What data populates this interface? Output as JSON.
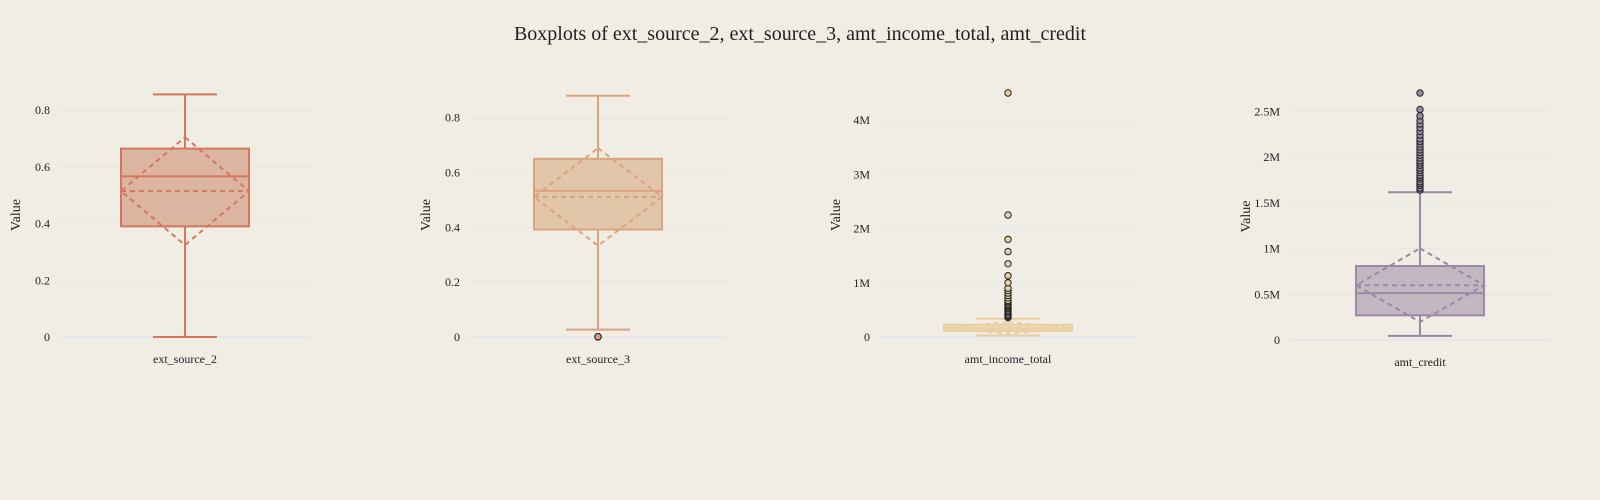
{
  "chart_data": {
    "title": "Boxplots of ext_source_2, ext_source_3, amt_income_total, amt_credit",
    "type": "box",
    "panels": [
      {
        "category": "ext_source_2",
        "ylabel": "Value",
        "ylim": [
          0,
          0.86
        ],
        "yticks": [
          0,
          0.2,
          0.4,
          0.6,
          0.8
        ],
        "ytick_labels": [
          "0",
          "0.2",
          "0.4",
          "0.6",
          "0.8"
        ],
        "color": "#d4775a",
        "fill": "#dcb5a1",
        "box": {
          "lowerfence": 0.0,
          "q1": 0.39,
          "median": 0.566,
          "q3": 0.664,
          "upperfence": 0.855,
          "mean": 0.514,
          "sd": 0.19
        },
        "outliers": []
      },
      {
        "category": "ext_source_3",
        "ylabel": "Value",
        "ylim": [
          0,
          0.89
        ],
        "yticks": [
          0,
          0.2,
          0.4,
          0.6,
          0.8
        ],
        "ytick_labels": [
          "0",
          "0.2",
          "0.4",
          "0.6",
          "0.8"
        ],
        "color": "#dda27e",
        "fill": "#e1c6a9",
        "box": {
          "lowerfence": 0.027,
          "q1": 0.392,
          "median": 0.533,
          "q3": 0.65,
          "upperfence": 0.88,
          "mean": 0.511,
          "sd": 0.178
        },
        "outliers": [
          0.0005,
          0.0008,
          0.001
        ]
      },
      {
        "category": "amt_income_total",
        "ylabel": "Value",
        "ylim": [
          0,
          4500000
        ],
        "yticks": [
          0,
          1000000,
          2000000,
          3000000,
          4000000
        ],
        "ytick_labels": [
          "0",
          "1M",
          "2M",
          "3M",
          "4M"
        ],
        "color": "#e8cfa4",
        "fill": "#eddcbd",
        "box": {
          "lowerfence": 27000,
          "q1": 112500,
          "median": 157500,
          "q3": 225000,
          "upperfence": 337500,
          "mean": 168000,
          "sd": 110000
        },
        "outliers": [
          360000,
          380000,
          400000,
          420000,
          450000,
          470000,
          495000,
          520000,
          540000,
          560000,
          585000,
          600000,
          630000,
          650000,
          675000,
          720000,
          765000,
          810000,
          855000,
          900000,
          1000000,
          1130000,
          1350000,
          1575000,
          1800000,
          2250000,
          4500000
        ]
      },
      {
        "category": "amt_credit",
        "ylabel": "Value",
        "ylim": [
          0,
          2700000
        ],
        "yticks": [
          0,
          500000,
          1000000,
          1500000,
          2000000,
          2500000
        ],
        "ytick_labels": [
          "0",
          "0.5M",
          "1M",
          "1.5M",
          "2M",
          "2.5M"
        ],
        "color": "#9a88a7",
        "fill": "#c3b8c2",
        "box": {
          "lowerfence": 45000,
          "q1": 270000,
          "median": 513000,
          "q3": 808650,
          "upperfence": 1615000,
          "mean": 599000,
          "sd": 402000
        },
        "outliers": [
          1640000,
          1660000,
          1690000,
          1710000,
          1730000,
          1760000,
          1780000,
          1800000,
          1830000,
          1855000,
          1880000,
          1910000,
          1935000,
          1960000,
          1990000,
          2020000,
          2050000,
          2080000,
          2110000,
          2140000,
          2170000,
          2200000,
          2240000,
          2280000,
          2320000,
          2360000,
          2400000,
          2450000,
          2520000,
          2700000
        ]
      }
    ]
  }
}
